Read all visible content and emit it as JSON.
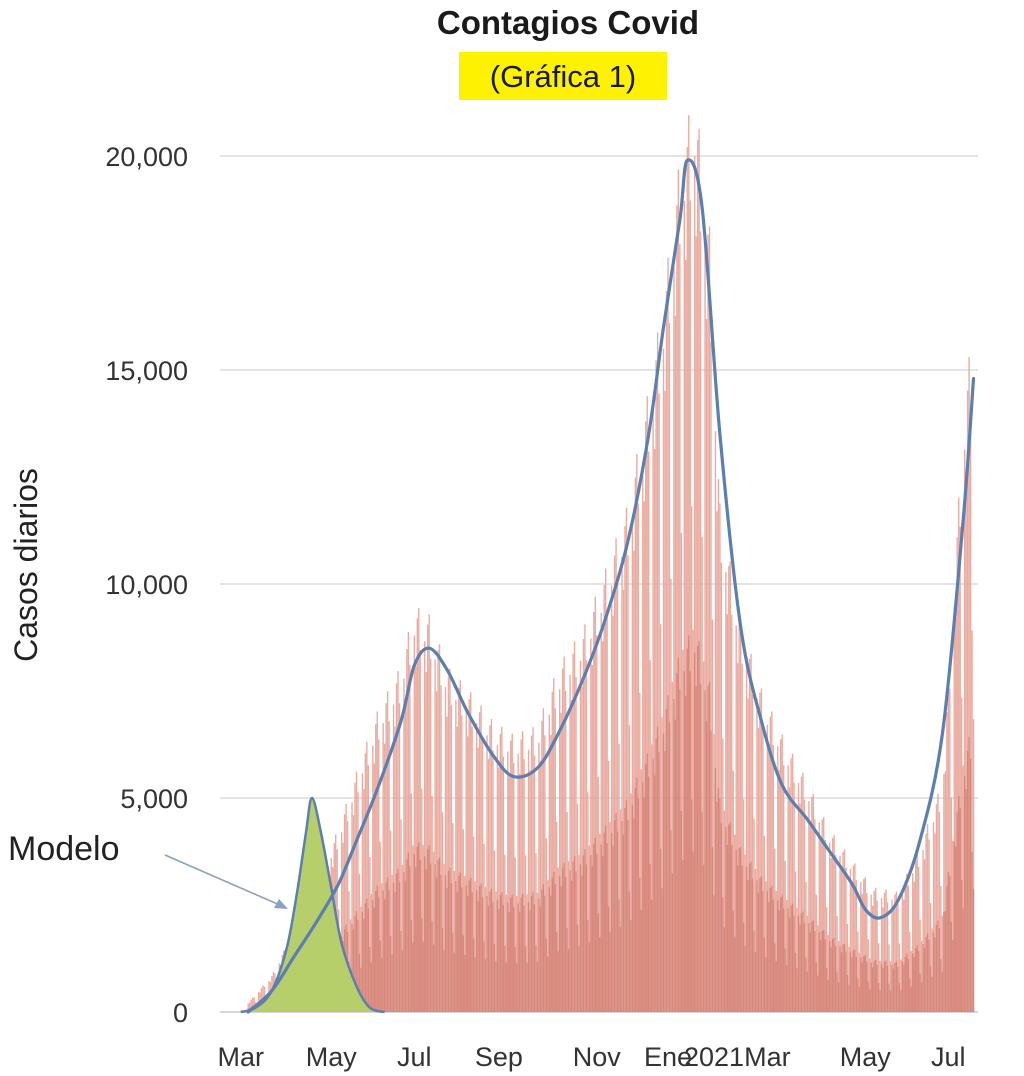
{
  "chart_data": {
    "type": "bar",
    "title": "Contagios Covid",
    "subtitle": "(Gráfica 1)",
    "ylabel": "Casos diarios",
    "xlabel": "",
    "ylim": [
      0,
      21000
    ],
    "yticks": [
      0,
      5000,
      10000,
      15000,
      20000
    ],
    "ytick_labels": [
      "0",
      "5,000",
      "10,000",
      "15,000",
      "20,000"
    ],
    "x_range": [
      "2020-03-01",
      "2021-07-25"
    ],
    "xtick_labels": [
      "Mar",
      "May",
      "Jul",
      "Sep",
      "Nov",
      "Ene",
      "2021",
      "Mar",
      "May",
      "Jul"
    ],
    "xtick_dates": [
      "2020-03-15",
      "2020-05-15",
      "2020-07-10",
      "2020-09-05",
      "2020-11-10",
      "2020-12-28",
      "2021-01-28",
      "2021-03-05",
      "2021-05-10",
      "2021-07-05"
    ],
    "grid": true,
    "annotation": "Modelo",
    "colors": {
      "daily_bars": "#e8a397",
      "trend_line": "#5b7fb0",
      "model_fill": "#b7cf6b",
      "highlight": "#fff200"
    },
    "series": [
      {
        "kind": "bars",
        "x": [
          "2020-03-20",
          "2020-04-05",
          "2020-04-20",
          "2020-05-05",
          "2020-05-20",
          "2020-06-01",
          "2020-06-15",
          "2020-07-01",
          "2020-07-10",
          "2020-07-20",
          "2020-08-01",
          "2020-08-15",
          "2020-09-01",
          "2020-09-15",
          "2020-10-01",
          "2020-10-15",
          "2020-11-01",
          "2020-11-15",
          "2020-12-01",
          "2020-12-15",
          "2020-12-25",
          "2021-01-05",
          "2021-01-15",
          "2021-01-25",
          "2021-02-01",
          "2021-02-15",
          "2021-03-01",
          "2021-03-15",
          "2021-04-01",
          "2021-04-15",
          "2021-05-01",
          "2021-05-15",
          "2021-06-01",
          "2021-06-15",
          "2021-07-01",
          "2021-07-15",
          "2021-07-22"
        ],
        "values": [
          200,
          800,
          1800,
          2800,
          4000,
          5200,
          6500,
          7500,
          8800,
          8600,
          7500,
          7000,
          6300,
          6000,
          6200,
          7500,
          8300,
          9500,
          11000,
          13500,
          15500,
          18500,
          20000,
          17000,
          11000,
          8500,
          7000,
          6000,
          5000,
          4000,
          3300,
          2700,
          2600,
          3500,
          5000,
          12800,
          15200
        ]
      },
      {
        "kind": "line",
        "x": [
          "2020-03-20",
          "2020-04-05",
          "2020-04-20",
          "2020-05-05",
          "2020-05-20",
          "2020-06-01",
          "2020-06-15",
          "2020-07-01",
          "2020-07-10",
          "2020-07-20",
          "2020-08-01",
          "2020-08-15",
          "2020-09-01",
          "2020-09-15",
          "2020-10-01",
          "2020-10-15",
          "2020-11-01",
          "2020-11-15",
          "2020-12-01",
          "2020-12-15",
          "2020-12-25",
          "2021-01-05",
          "2021-01-10",
          "2021-01-20",
          "2021-02-01",
          "2021-02-15",
          "2021-03-01",
          "2021-03-15",
          "2021-04-01",
          "2021-04-15",
          "2021-05-01",
          "2021-05-10",
          "2021-05-20",
          "2021-06-01",
          "2021-06-15",
          "2021-07-01",
          "2021-07-15",
          "2021-07-22"
        ],
        "values": [
          0,
          500,
          1300,
          2100,
          3000,
          4000,
          5200,
          6800,
          8100,
          8500,
          8000,
          7000,
          6000,
          5500,
          5700,
          6500,
          7800,
          9100,
          11000,
          13500,
          16000,
          18500,
          19900,
          18800,
          13500,
          9000,
          6800,
          5300,
          4500,
          3800,
          3000,
          2400,
          2200,
          2600,
          3900,
          6500,
          11500,
          14800
        ]
      },
      {
        "kind": "area",
        "name": "Modelo",
        "x": [
          "2020-03-15",
          "2020-03-25",
          "2020-04-05",
          "2020-04-15",
          "2020-04-22",
          "2020-04-28",
          "2020-05-02",
          "2020-05-08",
          "2020-05-15",
          "2020-05-22",
          "2020-06-01",
          "2020-06-10",
          "2020-06-20"
        ],
        "values": [
          0,
          100,
          500,
          1500,
          2800,
          4200,
          5000,
          4200,
          2900,
          1600,
          600,
          100,
          0
        ]
      }
    ]
  }
}
